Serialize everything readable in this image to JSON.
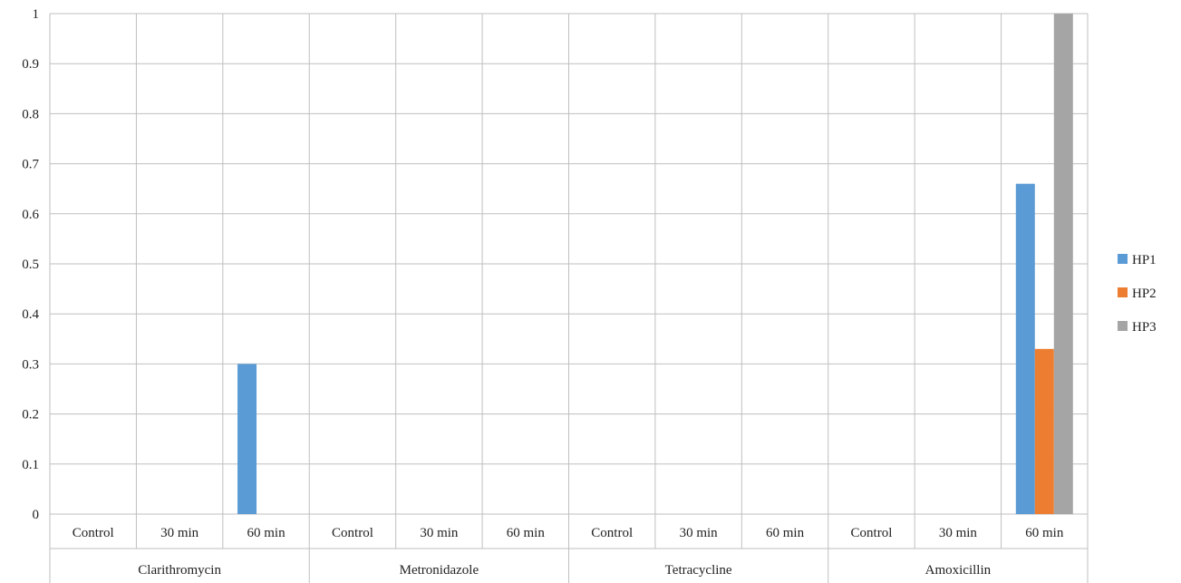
{
  "chart_data": {
    "type": "bar",
    "groups": [
      {
        "name": "Clarithromycin",
        "categories": [
          "Control",
          "30 min",
          "60 min"
        ]
      },
      {
        "name": "Metronidazole",
        "categories": [
          "Control",
          "30 min",
          "60 min"
        ]
      },
      {
        "name": "Tetracycline",
        "categories": [
          "Control",
          "30 min",
          "60 min"
        ]
      },
      {
        "name": "Amoxicillin",
        "categories": [
          "Control",
          "30 min",
          "60 min"
        ]
      }
    ],
    "series": [
      {
        "name": "HP1",
        "color": "#5b9bd5",
        "values": [
          0,
          0,
          0.3,
          0,
          0,
          0,
          0,
          0,
          0,
          0,
          0,
          0.66
        ]
      },
      {
        "name": "HP2",
        "color": "#ed7d31",
        "values": [
          0,
          0,
          0,
          0,
          0,
          0,
          0,
          0,
          0,
          0,
          0,
          0.33
        ]
      },
      {
        "name": "HP3",
        "color": "#a5a5a5",
        "values": [
          0,
          0,
          0,
          0,
          0,
          0,
          0,
          0,
          0,
          0,
          0,
          1.0
        ]
      }
    ],
    "yticks": [
      "0",
      "0.1",
      "0.2",
      "0.3",
      "0.4",
      "0.5",
      "0.6",
      "0.7",
      "0.8",
      "0.9",
      "1"
    ],
    "ylim": [
      0,
      1
    ],
    "grid": true,
    "legend": "right"
  }
}
